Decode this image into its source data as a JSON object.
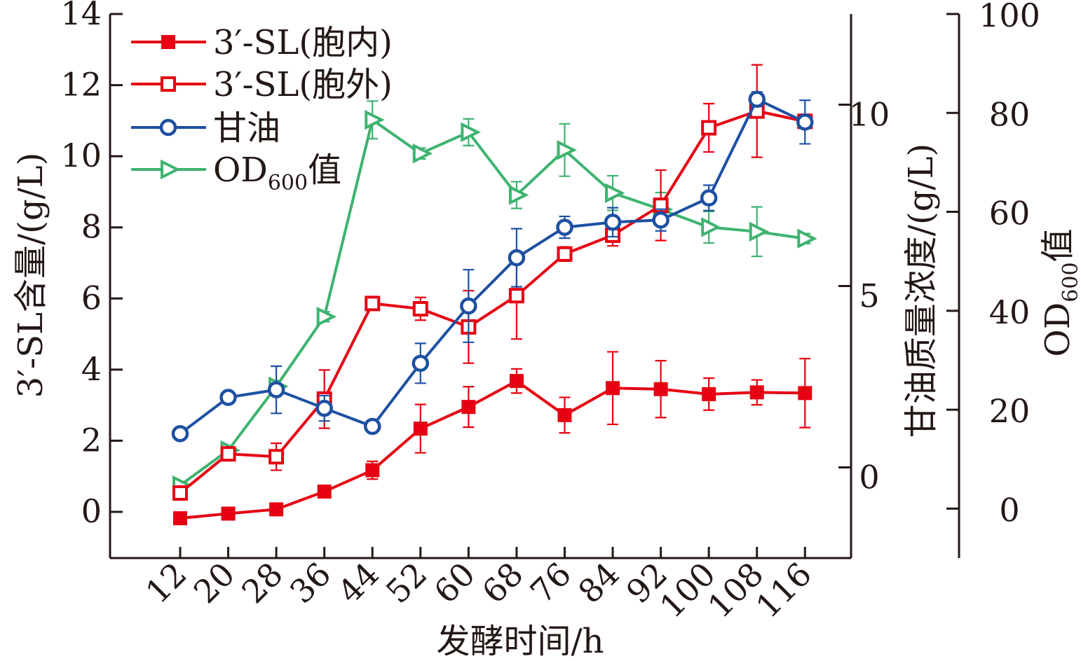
{
  "chart_data": {
    "type": "line",
    "xlabel": "发酵时间/h",
    "x": [
      12,
      20,
      28,
      36,
      44,
      52,
      60,
      68,
      76,
      84,
      92,
      100,
      108,
      116
    ],
    "x_tick_labels": [
      "12",
      "20",
      "28",
      "36",
      "44",
      "52",
      "60",
      "68",
      "76",
      "84",
      "92",
      "100",
      "108",
      "116"
    ],
    "axes": {
      "left": {
        "label": "3′-SL含量/(g/L)",
        "ylim": [
          -1.3,
          14
        ],
        "ticks": [
          0,
          2,
          4,
          6,
          8,
          10,
          12,
          14
        ],
        "tick_labels": [
          "0",
          "2",
          "4",
          "6",
          "8",
          "10",
          "12",
          "14"
        ]
      },
      "right1": {
        "label": "甘油质量浓度/(g/L)",
        "ylim": [
          -2.5,
          12.5
        ],
        "ticks": [
          0,
          5,
          10
        ],
        "tick_labels": [
          "0",
          "5",
          "10"
        ]
      },
      "right2": {
        "label_main": "OD",
        "label_sub": "600",
        "label_tail": "值",
        "ylim": [
          -10,
          100
        ],
        "ticks": [
          0,
          20,
          40,
          60,
          80,
          100
        ],
        "tick_labels": [
          "0",
          "20",
          "40",
          "60",
          "80",
          "100"
        ]
      }
    },
    "series": [
      {
        "name": "3′-SL(胞内)",
        "legend_main": "3′-SL(胞内)",
        "axis": "left",
        "color": "#e60012",
        "marker": "square-filled",
        "values": [
          -0.18,
          -0.05,
          0.07,
          0.57,
          1.17,
          2.34,
          2.95,
          3.68,
          2.72,
          3.48,
          3.45,
          3.31,
          3.36,
          3.34
        ],
        "errors": [
          0.06,
          0.06,
          0.07,
          0.1,
          0.25,
          0.68,
          0.57,
          0.34,
          0.5,
          1.02,
          0.8,
          0.45,
          0.35,
          0.97
        ]
      },
      {
        "name": "3′-SL(胞外)",
        "legend_main": "3′-SL(胞外)",
        "axis": "left",
        "color": "#e60012",
        "marker": "square-open",
        "values": [
          0.53,
          1.63,
          1.55,
          3.17,
          5.86,
          5.71,
          5.2,
          6.08,
          7.25,
          7.78,
          8.62,
          10.8,
          11.27,
          10.98
        ],
        "errors": [
          0.06,
          0.1,
          0.38,
          0.82,
          0.14,
          0.32,
          1.02,
          1.22,
          0.2,
          0.3,
          0.99,
          0.68,
          1.3,
          0.2
        ]
      },
      {
        "name": "甘油",
        "legend_main": "甘油",
        "axis": "right1",
        "color": "#1d50a2",
        "marker": "circle-open",
        "values": [
          0.93,
          1.93,
          2.14,
          1.63,
          1.13,
          2.87,
          4.45,
          5.78,
          6.62,
          6.76,
          6.82,
          7.43,
          10.15,
          9.52
        ],
        "errors": [
          0.1,
          0.1,
          0.65,
          0.35,
          0.15,
          0.55,
          1.0,
          0.8,
          0.3,
          0.4,
          0.3,
          0.35,
          0.2,
          0.6
        ]
      },
      {
        "name": "OD600值",
        "legend_main": "OD",
        "legend_sub": "600",
        "legend_tail": "值",
        "axis": "right2",
        "color": "#3eb370",
        "marker": "triangle-right-open",
        "values": [
          4.7,
          11.8,
          24.7,
          38.8,
          78.6,
          71.8,
          76.1,
          63.4,
          72.5,
          63.8,
          60.5,
          56.9,
          56.0,
          54.6
        ],
        "errors": [
          0.7,
          0.8,
          1.2,
          1.0,
          3.8,
          1.1,
          2.7,
          2.7,
          5.3,
          3.5,
          3.4,
          3.2,
          5.0,
          1.0
        ]
      }
    ]
  }
}
